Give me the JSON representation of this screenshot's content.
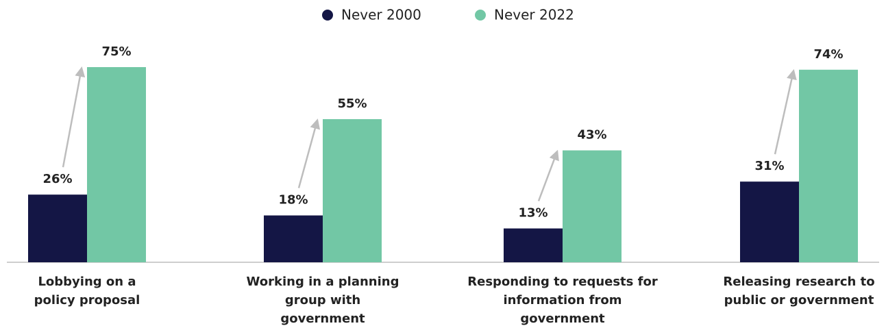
{
  "chart_data": {
    "type": "bar",
    "categories": [
      "Lobbying on a policy proposal",
      "Working in a planning group with government",
      "Responding to requests for information from government",
      "Releasing research to public or government"
    ],
    "series": [
      {
        "name": "Never 2000",
        "color": "#141645",
        "values": [
          26,
          18,
          13,
          31
        ],
        "value_labels": [
          "26%",
          "18%",
          "13%",
          "31%"
        ]
      },
      {
        "name": "Never 2022",
        "color": "#72c7a5",
        "values": [
          75,
          55,
          43,
          74
        ],
        "value_labels": [
          "75%",
          "55%",
          "43%",
          "74%"
        ]
      }
    ],
    "ylim": [
      0,
      80
    ]
  }
}
